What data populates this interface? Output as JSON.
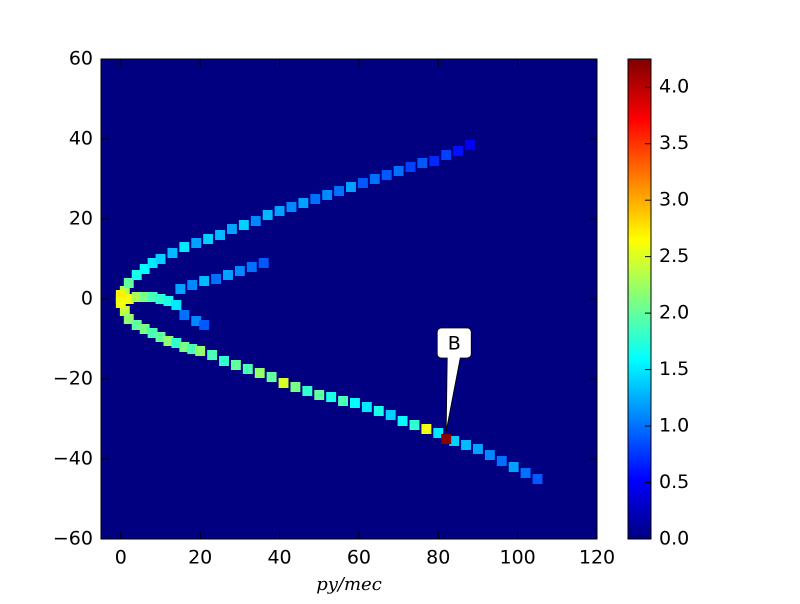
{
  "chart_data": {
    "type": "heatmap",
    "colormap": "jet",
    "xlabel": "py/mec",
    "xlim": [
      -5,
      120
    ],
    "xticks": [
      0,
      20,
      40,
      60,
      80,
      100,
      120
    ],
    "ylim": [
      -60,
      60
    ],
    "yticks": [
      {
        "value": -60,
        "label": "−60"
      },
      {
        "value": -40,
        "label": "−40"
      },
      {
        "value": -20,
        "label": "−20"
      },
      0,
      20,
      40,
      60
    ],
    "clim": [
      0,
      4.25
    ],
    "cticks": [
      {
        "value": 0,
        "label": "0.0"
      },
      {
        "value": 0.5,
        "label": "0.5"
      },
      {
        "value": 1,
        "label": "1.0"
      },
      {
        "value": 1.5,
        "label": "1.5"
      },
      {
        "value": 2,
        "label": "2.0"
      },
      {
        "value": 2.5,
        "label": "2.5"
      },
      {
        "value": 3,
        "label": "3.0"
      },
      {
        "value": 3.5,
        "label": "3.5"
      },
      {
        "value": 4,
        "label": "4.0"
      }
    ],
    "x": [
      1,
      2,
      4,
      6,
      8,
      10,
      13,
      16,
      19,
      22,
      25,
      28,
      31,
      34,
      37,
      40,
      43,
      46,
      49,
      52,
      55,
      58,
      61,
      64,
      67,
      70,
      73,
      76,
      79,
      82,
      85,
      88,
      15,
      18,
      21,
      24,
      27,
      30,
      33,
      36,
      16,
      19,
      21,
      1,
      2,
      4,
      6,
      8,
      10,
      12,
      14,
      16,
      18,
      20,
      23,
      26,
      29,
      32,
      35,
      38,
      41,
      44,
      47,
      50,
      53,
      56,
      59,
      62,
      65,
      68,
      71,
      74,
      77,
      80,
      84,
      87,
      90,
      93,
      96,
      99,
      102,
      105,
      2,
      4,
      6,
      8,
      10,
      12,
      14,
      0,
      0,
      0,
      82
    ],
    "y": [
      2,
      4,
      6,
      7.5,
      9,
      10,
      11.5,
      13,
      14,
      15,
      16,
      17.5,
      18.5,
      19.5,
      21,
      22,
      23,
      24,
      25,
      26,
      27,
      28,
      29,
      30,
      31,
      32,
      33,
      34,
      34.5,
      36,
      37,
      38.5,
      2.5,
      3.5,
      4.5,
      5,
      6,
      7,
      8,
      9,
      -4,
      -5.5,
      -6.5,
      -3,
      -5,
      -6.5,
      -7.5,
      -8.5,
      -9.5,
      -10.5,
      -11,
      -12,
      -12.5,
      -13,
      -14,
      -15.5,
      -16.5,
      -17.5,
      -18.5,
      -19.5,
      -21,
      -22,
      -23,
      -24,
      -24.5,
      -25.5,
      -26,
      -27,
      -28,
      -29,
      -30.5,
      -31.5,
      -32.5,
      -33.5,
      -35.5,
      -36.5,
      -37.5,
      -39,
      -40.5,
      -42,
      -43.5,
      -45,
      0,
      0.5,
      0.5,
      0.5,
      0,
      -0.5,
      -1.5,
      0,
      1,
      -1,
      -35
    ],
    "values": [
      2.3,
      2.0,
      1.7,
      1.6,
      1.5,
      1.4,
      1.3,
      1.5,
      1.2,
      1.4,
      1.3,
      1.2,
      1.4,
      1.1,
      1.3,
      1.2,
      1.1,
      1.2,
      1.0,
      1.1,
      1.0,
      1.2,
      0.9,
      1.0,
      0.9,
      1.0,
      0.8,
      0.9,
      0.7,
      0.8,
      0.6,
      0.5,
      1.2,
      1.1,
      1.3,
      1.0,
      1.2,
      1.1,
      1.0,
      0.9,
      1.0,
      1.1,
      0.9,
      2.4,
      2.2,
      2.0,
      2.1,
      1.9,
      2.0,
      2.2,
      1.8,
      2.1,
      1.9,
      2.2,
      1.9,
      1.8,
      2.0,
      1.9,
      2.2,
      2.0,
      2.5,
      2.1,
      1.8,
      2.0,
      1.7,
      1.9,
      1.6,
      1.5,
      1.7,
      1.4,
      1.6,
      1.8,
      2.6,
      1.5,
      1.4,
      1.3,
      1.2,
      1.1,
      1.0,
      1.2,
      1.0,
      0.9,
      2.6,
      2.3,
      2.1,
      1.9,
      1.8,
      1.7,
      1.5,
      2.9,
      2.7,
      2.6,
      4.2
    ],
    "annotations": [
      {
        "text": "B",
        "x": 82,
        "y": -35
      }
    ]
  }
}
